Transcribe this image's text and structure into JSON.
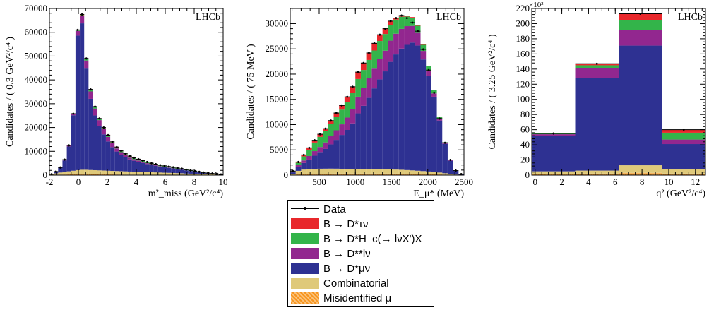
{
  "legend": {
    "entries": [
      {
        "label": "Data",
        "color": "#000000",
        "kind": "line"
      },
      {
        "label": "B → D*τν",
        "color": "#e8272b",
        "kind": "fill"
      },
      {
        "label": "B → D*H_c(→ lνX')X",
        "color": "#33b44a",
        "kind": "fill"
      },
      {
        "label": "B → D**lν",
        "color": "#92278f",
        "kind": "fill"
      },
      {
        "label": "B → D*μν",
        "color": "#2e3192",
        "kind": "fill"
      },
      {
        "label": "Combinatorial",
        "color": "#dfc97a",
        "kind": "fill"
      },
      {
        "label": "Misidentified μ",
        "color": "#f7941d",
        "kind": "hatch"
      }
    ]
  },
  "chart_data": [
    {
      "type": "bar",
      "stacked": true,
      "lhcb_label": "LHCb",
      "ylabel": "Candidates / ( 0.3 GeV²/c⁴ )",
      "xlabel": "m²_miss (GeV²/c⁴)",
      "xlim": [
        -2,
        10
      ],
      "ylim": [
        0,
        70000
      ],
      "xticks": [
        -2,
        0,
        2,
        4,
        6,
        8,
        10
      ],
      "yticks": [
        0,
        10000,
        20000,
        30000,
        40000,
        50000,
        60000,
        70000
      ],
      "bin_width": 0.3,
      "x": [
        -1.85,
        -1.55,
        -1.25,
        -0.95,
        -0.65,
        -0.35,
        -0.05,
        0.25,
        0.55,
        0.85,
        1.15,
        1.45,
        1.75,
        2.05,
        2.35,
        2.65,
        2.95,
        3.25,
        3.55,
        3.85,
        4.15,
        4.45,
        4.75,
        5.05,
        5.35,
        5.65,
        5.95,
        6.25,
        6.55,
        6.85,
        7.15,
        7.45,
        7.75,
        8.05,
        8.35,
        8.65,
        8.95,
        9.25,
        9.55,
        9.85
      ],
      "data": [
        400,
        1500,
        3200,
        6500,
        12500,
        25800,
        61000,
        67500,
        49000,
        36000,
        28800,
        23800,
        20000,
        16800,
        14000,
        11800,
        10200,
        9000,
        8000,
        7300,
        6700,
        6100,
        5500,
        5000,
        4600,
        4200,
        3900,
        3600,
        3300,
        3000,
        2700,
        2300,
        2000,
        1700,
        1400,
        1100,
        900,
        700,
        500,
        300
      ],
      "series": [
        {
          "name": "Misidentified μ",
          "values": [
            100,
            150,
            200,
            250,
            300,
            350,
            400,
            450,
            450,
            400,
            380,
            350,
            330,
            300,
            280,
            260,
            240,
            220,
            200,
            190,
            180,
            170,
            160,
            150,
            140,
            130,
            120,
            110,
            100,
            90,
            80,
            70,
            60,
            50,
            40,
            30,
            25,
            20,
            15,
            10
          ]
        },
        {
          "name": "Combinatorial",
          "values": [
            300,
            600,
            900,
            1100,
            1300,
            1500,
            1700,
            1800,
            1800,
            1750,
            1700,
            1650,
            1600,
            1550,
            1500,
            1450,
            1400,
            1350,
            1300,
            1250,
            1200,
            1150,
            1100,
            1050,
            1000,
            950,
            900,
            850,
            800,
            750,
            700,
            600,
            550,
            500,
            450,
            400,
            350,
            300,
            250,
            200
          ]
        },
        {
          "name": "B → D*μν",
          "values": [
            0,
            700,
            2000,
            4800,
            10400,
            23300,
            56500,
            61500,
            42500,
            29900,
            23000,
            18600,
            15200,
            12300,
            10000,
            8200,
            6900,
            5900,
            5100,
            4600,
            4200,
            3800,
            3400,
            3100,
            2800,
            2500,
            2300,
            2100,
            1900,
            1700,
            1500,
            1300,
            1100,
            900,
            700,
            500,
            400,
            300,
            200,
            80
          ]
        },
        {
          "name": "B → D**lν",
          "values": [
            0,
            50,
            100,
            300,
            400,
            500,
            2000,
            3000,
            3400,
            3100,
            2900,
            2500,
            2200,
            1900,
            1600,
            1300,
            1100,
            900,
            750,
            650,
            550,
            450,
            350,
            300,
            250,
            200,
            180,
            150,
            120,
            100,
            80,
            60,
            50,
            40,
            30,
            20,
            15,
            10,
            5,
            5
          ]
        },
        {
          "name": "B → D*H_c(→ lνX')X",
          "values": [
            0,
            0,
            0,
            20,
            50,
            100,
            300,
            450,
            500,
            550,
            600,
            500,
            450,
            500,
            450,
            400,
            400,
            450,
            470,
            450,
            430,
            420,
            380,
            300,
            300,
            300,
            280,
            270,
            280,
            260,
            250,
            200,
            180,
            150,
            130,
            110,
            80,
            50,
            20,
            5
          ]
        },
        {
          "name": "B → D*τν",
          "values": [
            0,
            0,
            0,
            30,
            50,
            50,
            100,
            300,
            350,
            300,
            220,
            200,
            220,
            250,
            170,
            190,
            160,
            180,
            180,
            160,
            140,
            110,
            110,
            100,
            110,
            120,
            120,
            120,
            100,
            100,
            90,
            70,
            60,
            60,
            50,
            40,
            30,
            20,
            10,
            0
          ]
        }
      ]
    },
    {
      "type": "bar",
      "stacked": true,
      "lhcb_label": "LHCb",
      "ylabel": "Candidates / ( 75 MeV )",
      "xlabel": "E_μ* (MeV)",
      "xlim": [
        100,
        2500
      ],
      "ylim": [
        0,
        33000
      ],
      "xticks": [
        500,
        1000,
        1500,
        2000,
        2500
      ],
      "yticks": [
        0,
        5000,
        10000,
        15000,
        20000,
        25000,
        30000
      ],
      "bin_width": 75,
      "x": [
        137.5,
        212.5,
        287.5,
        362.5,
        437.5,
        512.5,
        587.5,
        662.5,
        737.5,
        812.5,
        887.5,
        962.5,
        1037.5,
        1112.5,
        1187.5,
        1262.5,
        1337.5,
        1412.5,
        1487.5,
        1562.5,
        1637.5,
        1712.5,
        1787.5,
        1862.5,
        1937.5,
        2012.5,
        2087.5,
        2162.5,
        2237.5,
        2312.5,
        2387.5,
        2462.5
      ],
      "data": [
        800,
        2600,
        4000,
        5400,
        6900,
        8100,
        9200,
        10800,
        12300,
        13800,
        15500,
        17500,
        20400,
        22200,
        24200,
        26100,
        27800,
        29000,
        30500,
        31100,
        31600,
        31100,
        30200,
        28500,
        24900,
        20800,
        16300,
        11200,
        6400,
        3000,
        900,
        200
      ],
      "series": [
        {
          "name": "Misidentified μ",
          "values": [
            50,
            150,
            200,
            230,
            250,
            270,
            280,
            290,
            300,
            300,
            300,
            300,
            300,
            300,
            300,
            300,
            300,
            300,
            300,
            300,
            280,
            260,
            240,
            220,
            200,
            180,
            160,
            130,
            100,
            60,
            30,
            10
          ]
        },
        {
          "name": "Combinatorial",
          "values": [
            200,
            700,
            900,
            950,
            1000,
            1000,
            1000,
            1000,
            980,
            960,
            950,
            940,
            930,
            920,
            900,
            880,
            860,
            850,
            830,
            800,
            780,
            740,
            700,
            650,
            600,
            540,
            470,
            380,
            280,
            180,
            80,
            30
          ]
        },
        {
          "name": "B → D*μν",
          "values": [
            300,
            800,
            1300,
            1900,
            2600,
            3300,
            3900,
            4800,
            5700,
            6700,
            7700,
            9000,
            11000,
            12500,
            14100,
            16000,
            17800,
            19400,
            21300,
            22800,
            24000,
            24800,
            25300,
            24800,
            22100,
            18900,
            14900,
            10300,
            5800,
            2600,
            740,
            150
          ]
        },
        {
          "name": "B → D**lν",
          "values": [
            100,
            350,
            500,
            700,
            900,
            1000,
            1300,
            1600,
            1900,
            2100,
            2450,
            2800,
            3300,
            3600,
            3900,
            3900,
            4100,
            4100,
            4200,
            4100,
            3900,
            3700,
            3300,
            2500,
            1700,
            1000,
            650,
            350,
            180,
            140,
            40,
            5
          ]
        },
        {
          "name": "B → D*H_c(→ lνX')X",
          "values": [
            100,
            450,
            800,
            1200,
            1700,
            2000,
            2200,
            2500,
            2700,
            2900,
            3000,
            3200,
            3500,
            3500,
            3600,
            3600,
            3500,
            3300,
            3100,
            2800,
            2400,
            1900,
            1600,
            1400,
            1200,
            930,
            600,
            300,
            140,
            50,
            10,
            5
          ]
        },
        {
          "name": "B → D*τν",
          "values": [
            50,
            150,
            300,
            420,
            450,
            530,
            520,
            610,
            720,
            840,
            1100,
            1260,
            1370,
            1380,
            1400,
            1420,
            1240,
            1050,
            770,
            300,
            240,
            200,
            160,
            130,
            100,
            50,
            20,
            10,
            0,
            0,
            0,
            0
          ]
        }
      ]
    },
    {
      "type": "bar",
      "stacked": true,
      "lhcb_label": "LHCb",
      "ylabel": "Candidates / ( 3.25 GeV²/c⁴ )",
      "xlabel": "q² (GeV²/c⁴)",
      "multiplier": "×10³",
      "xlim": [
        -0.25,
        12.75
      ],
      "ylim": [
        0,
        220
      ],
      "xticks": [
        0,
        2,
        4,
        6,
        8,
        10,
        12
      ],
      "yticks": [
        0,
        20,
        40,
        60,
        80,
        100,
        120,
        140,
        160,
        180,
        200,
        220
      ],
      "bin_edges": [
        -0.25,
        3.0,
        6.25,
        9.5,
        12.75
      ],
      "data": [
        55,
        147,
        213,
        60
      ],
      "series": [
        {
          "name": "Misidentified μ",
          "values": [
            1,
            2,
            3,
            2
          ]
        },
        {
          "name": "Combinatorial",
          "values": [
            4,
            4,
            10,
            6
          ]
        },
        {
          "name": "B → D*μν",
          "values": [
            47,
            122,
            158,
            33
          ]
        },
        {
          "name": "B → D**lν",
          "values": [
            2,
            13,
            21,
            6
          ]
        },
        {
          "name": "B → D*H_c(→ lνX')X",
          "values": [
            1,
            4,
            13,
            9
          ]
        },
        {
          "name": "B → D*τν",
          "values": [
            0,
            2,
            8,
            4
          ]
        }
      ]
    }
  ]
}
